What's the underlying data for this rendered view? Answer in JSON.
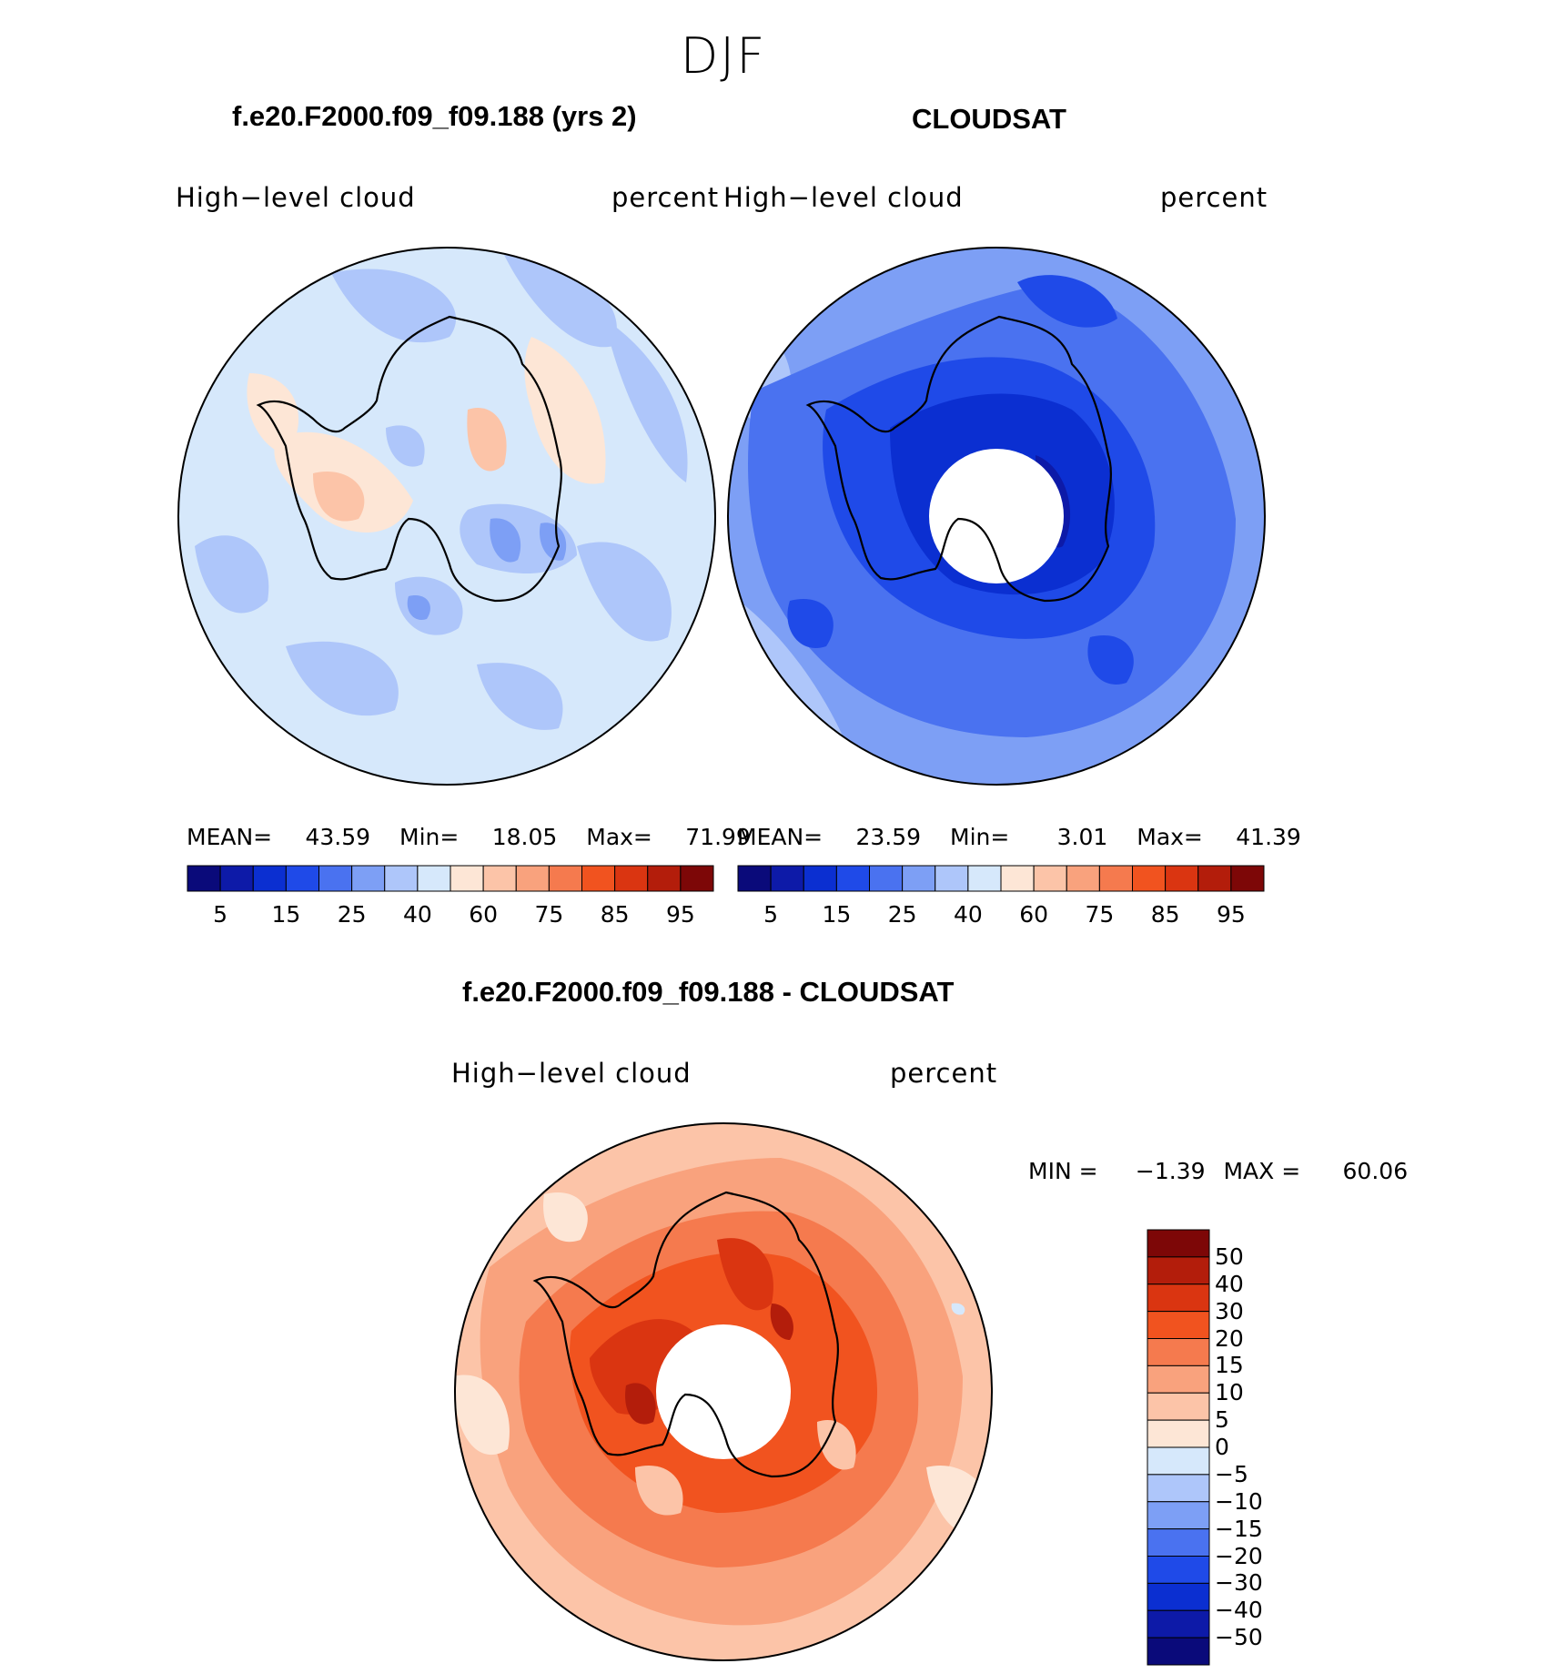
{
  "season": "DJF",
  "panels": [
    {
      "title": "f.e20.F2000.f09_f09.188 (yrs 2)",
      "left_label": "High−level  cloud",
      "right_label": "percent",
      "stats": {
        "mean_label": "MEAN=",
        "mean": "43.59",
        "min_label": "Min=",
        "min": "18.05",
        "max_label": "Max=",
        "max": "71.99"
      }
    },
    {
      "title": "CLOUDSAT",
      "left_label": "High−level  cloud",
      "right_label": "percent",
      "stats": {
        "mean_label": "MEAN=",
        "mean": "23.59",
        "min_label": "Min=",
        "min": "3.01",
        "max_label": "Max=",
        "max": "41.39"
      }
    }
  ],
  "abs_colorbar": {
    "colors": [
      "#0a0a7a",
      "#0d1aa8",
      "#0b2fd1",
      "#1f4ae8",
      "#4a72f0",
      "#7d9ff5",
      "#aec6fa",
      "#d6e8fb",
      "#fde6d6",
      "#fcc4a8",
      "#f9a27d",
      "#f57a4e",
      "#f1531f",
      "#da3511",
      "#b31d0b",
      "#7d0707"
    ],
    "tick_labels": [
      "5",
      "15",
      "25",
      "40",
      "60",
      "75",
      "85",
      "95"
    ]
  },
  "diff_panel": {
    "title": "f.e20.F2000.f09_f09.188 - CLOUDSAT",
    "left_label": "High−level  cloud",
    "right_label": "percent",
    "stats": {
      "min_label": "MIN =",
      "min": "−1.39",
      "max_label": "MAX =",
      "max": "60.06"
    }
  },
  "diff_colorbar": {
    "colors": [
      "#7d0707",
      "#b31d0b",
      "#da3511",
      "#f1531f",
      "#f57a4e",
      "#f9a27d",
      "#fcc4a8",
      "#fde6d6",
      "#d6e8fb",
      "#aec6fa",
      "#7d9ff5",
      "#4a72f0",
      "#1f4ae8",
      "#0b2fd1",
      "#0d1aa8",
      "#0a0a7a"
    ],
    "tick_labels": [
      "50",
      "40",
      "30",
      "20",
      "15",
      "10",
      "5",
      "0",
      "−5",
      "−10",
      "−15",
      "−20",
      "−30",
      "−40",
      "−50"
    ]
  },
  "colors": {
    "coastline": "#000000",
    "missing": "#ffffff"
  }
}
